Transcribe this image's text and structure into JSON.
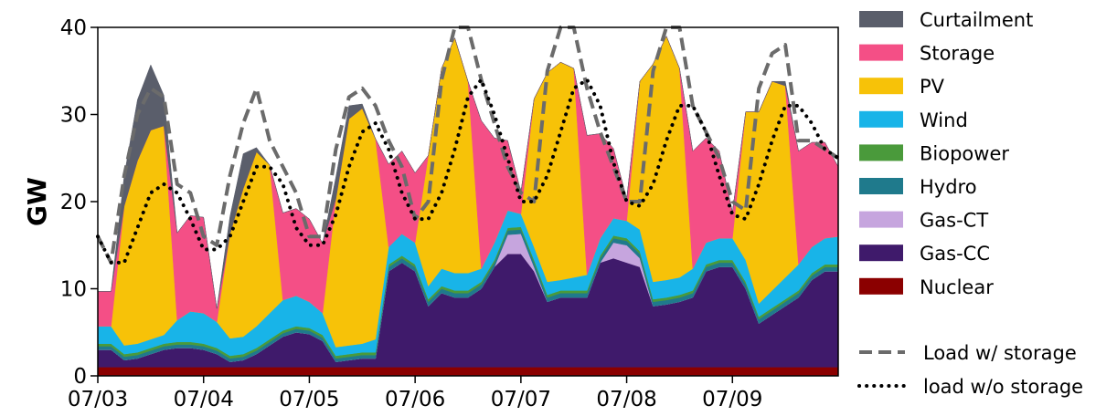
{
  "chart_data": {
    "type": "area",
    "ylabel": "GW",
    "ylim": [
      0,
      40
    ],
    "yticks": [
      0,
      10,
      20,
      30,
      40
    ],
    "xlim": [
      0,
      7
    ],
    "xticks": [
      0,
      1,
      2,
      3,
      4,
      5,
      6
    ],
    "xtick_labels": [
      "07/03",
      "07/04",
      "07/05",
      "07/06",
      "07/07",
      "07/08",
      "07/09"
    ],
    "grid": false,
    "legend_position": "right",
    "legend_order": [
      "Curtailment",
      "Storage",
      "PV",
      "Wind",
      "Biopower",
      "Hydro",
      "Gas-CT",
      "Gas-CC",
      "Nuclear"
    ],
    "x": [
      0,
      0.125,
      0.25,
      0.375,
      0.5,
      0.625,
      0.75,
      0.875,
      1,
      1.125,
      1.25,
      1.375,
      1.5,
      1.625,
      1.75,
      1.875,
      2,
      2.125,
      2.25,
      2.375,
      2.5,
      2.625,
      2.75,
      2.875,
      3,
      3.125,
      3.25,
      3.375,
      3.5,
      3.625,
      3.75,
      3.875,
      4,
      4.125,
      4.25,
      4.375,
      4.5,
      4.625,
      4.75,
      4.875,
      5,
      5.125,
      5.25,
      5.375,
      5.5,
      5.625,
      5.75,
      5.875,
      6,
      6.125,
      6.25,
      6.375,
      6.5,
      6.625,
      6.75,
      6.875,
      7
    ],
    "series": [
      {
        "name": "Nuclear",
        "color": "#8b0000",
        "values": [
          1,
          1,
          1,
          1,
          1,
          1,
          1,
          1,
          1,
          1,
          1,
          1,
          1,
          1,
          1,
          1,
          1,
          1,
          1,
          1,
          1,
          1,
          1,
          1,
          1,
          1,
          1,
          1,
          1,
          1,
          1,
          1,
          1,
          1,
          1,
          1,
          1,
          1,
          1,
          1,
          1,
          1,
          1,
          1,
          1,
          1,
          1,
          1,
          1,
          1,
          1,
          1,
          1,
          1,
          1,
          1,
          1
        ]
      },
      {
        "name": "Gas-CC",
        "color": "#3f1a6b",
        "values": [
          2,
          2,
          0.8,
          1,
          1.5,
          2,
          2.2,
          2.2,
          2,
          1.5,
          0.6,
          0.8,
          1.5,
          2.5,
          3.5,
          4,
          3.8,
          3,
          0.6,
          0.8,
          1,
          1,
          11,
          12,
          11,
          7,
          8.5,
          8,
          8,
          9,
          11.5,
          13,
          13,
          11,
          7.5,
          8,
          8,
          8,
          12,
          12.5,
          12,
          11.5,
          7,
          7.2,
          7.5,
          8,
          11,
          11.5,
          11.5,
          9,
          5,
          6,
          7,
          8,
          10,
          11,
          11
        ]
      },
      {
        "name": "Gas-CT",
        "color": "#c6a5de",
        "values": [
          0,
          0,
          0,
          0,
          0,
          0,
          0,
          0,
          0,
          0,
          0,
          0,
          0,
          0,
          0,
          0,
          0,
          0,
          0,
          0,
          0,
          0,
          0,
          0,
          0,
          0,
          0,
          0,
          0,
          0,
          0,
          2.2,
          2.3,
          0.5,
          0,
          0,
          0,
          0,
          0,
          1.8,
          2,
          1,
          0,
          0,
          0,
          0,
          0,
          0,
          0,
          0,
          0,
          0,
          0,
          0,
          0,
          0,
          0
        ]
      },
      {
        "name": "Hydro",
        "color": "#1f7a8c",
        "values": [
          0.4,
          0.4,
          0.4,
          0.4,
          0.4,
          0.4,
          0.4,
          0.4,
          0.4,
          0.4,
          0.4,
          0.4,
          0.4,
          0.4,
          0.4,
          0.4,
          0.4,
          0.4,
          0.4,
          0.4,
          0.4,
          0.4,
          0.5,
          0.5,
          0.5,
          0.5,
          0.5,
          0.5,
          0.5,
          0.5,
          0.5,
          0.5,
          0.5,
          0.5,
          0.5,
          0.5,
          0.5,
          0.5,
          0.5,
          0.5,
          0.5,
          0.5,
          0.5,
          0.5,
          0.5,
          0.5,
          0.5,
          0.5,
          0.5,
          0.5,
          0.5,
          0.5,
          0.5,
          0.5,
          0.5,
          0.5,
          0.5
        ]
      },
      {
        "name": "Biopower",
        "color": "#4a9a3b",
        "values": [
          0.3,
          0.3,
          0.3,
          0.3,
          0.3,
          0.3,
          0.3,
          0.3,
          0.3,
          0.3,
          0.3,
          0.3,
          0.3,
          0.3,
          0.3,
          0.3,
          0.3,
          0.3,
          0.3,
          0.3,
          0.3,
          0.3,
          0.3,
          0.3,
          0.3,
          0.3,
          0.3,
          0.3,
          0.3,
          0.3,
          0.3,
          0.3,
          0.3,
          0.3,
          0.3,
          0.3,
          0.3,
          0.3,
          0.3,
          0.3,
          0.3,
          0.3,
          0.3,
          0.3,
          0.3,
          0.3,
          0.3,
          0.3,
          0.3,
          0.3,
          0.3,
          0.3,
          0.3,
          0.3,
          0.3,
          0.3,
          0.3
        ]
      },
      {
        "name": "Wind",
        "color": "#18b4e8",
        "values": [
          2,
          2,
          1,
          1,
          1,
          1,
          2.5,
          3.5,
          3.5,
          3,
          2,
          2,
          2.5,
          3,
          3.5,
          3.5,
          3,
          2.5,
          1,
          1,
          1,
          1.5,
          2,
          2.5,
          2.5,
          1.5,
          2,
          2,
          2,
          1.5,
          2,
          2,
          1.5,
          1.5,
          1.5,
          1.2,
          1.5,
          1.8,
          2,
          2,
          2,
          2.5,
          2,
          2,
          2,
          2.5,
          2.5,
          2.5,
          2.5,
          2.5,
          1.5,
          2,
          2.5,
          3,
          3,
          3,
          3.2
        ]
      },
      {
        "name": "PV",
        "color": "#f7c208",
        "values": [
          0,
          0,
          16,
          21,
          24,
          24,
          0,
          0,
          0,
          0,
          12,
          17,
          20,
          17,
          0,
          0,
          0,
          0,
          17,
          26,
          27,
          23,
          0,
          0,
          0,
          15,
          23,
          27,
          22,
          0,
          0,
          0,
          0,
          17,
          24,
          25,
          24,
          0,
          0,
          0,
          0,
          17,
          25,
          28,
          24,
          0,
          0,
          0,
          0,
          17,
          22,
          24,
          22,
          0,
          0,
          0,
          0
        ]
      },
      {
        "name": "Storage",
        "color": "#f44f86",
        "values": [
          4,
          4,
          0,
          0,
          0,
          0,
          10,
          11,
          11,
          1.5,
          0,
          0,
          0,
          0,
          10,
          10,
          9.5,
          8,
          0,
          0,
          0,
          0,
          9.5,
          9.5,
          8,
          0,
          0,
          0,
          0,
          17,
          12,
          8,
          2.5,
          0,
          0,
          0,
          0,
          16,
          12,
          8,
          2.5,
          0,
          0,
          0,
          0,
          13.5,
          12,
          10,
          3,
          0,
          0,
          0,
          0,
          13,
          12,
          11,
          8
        ]
      },
      {
        "name": "Curtailment",
        "color": "#5a5e6b",
        "values": [
          0,
          0,
          3.5,
          7,
          7.5,
          3.5,
          0,
          0,
          0,
          0,
          2,
          4,
          0.5,
          0,
          0,
          0,
          0,
          0,
          2.5,
          1.5,
          0.5,
          0,
          0,
          0,
          0,
          0,
          0,
          0,
          0,
          0,
          0,
          0,
          0,
          0,
          0,
          0,
          0,
          0,
          0,
          0,
          0,
          0,
          0,
          0,
          0,
          0,
          0,
          0,
          0,
          0,
          0,
          0,
          0.5,
          0,
          0,
          0,
          0
        ]
      }
    ],
    "lines": [
      {
        "name": "Load w/ storage",
        "style": "dashed",
        "color": "#6b6b6b",
        "values": [
          16,
          13,
          23,
          30,
          33,
          32,
          22,
          21,
          16,
          15,
          23,
          29,
          33,
          27,
          24,
          21,
          16,
          16,
          26,
          32,
          33,
          31,
          27,
          24,
          18,
          20,
          34,
          40,
          40,
          34,
          29,
          24,
          21,
          20,
          35,
          40,
          40,
          33,
          28,
          24,
          20,
          20,
          35,
          40,
          40,
          31,
          28,
          25,
          20,
          19,
          33,
          37,
          38,
          27,
          27,
          26,
          25
        ]
      },
      {
        "name": "load w/o storage",
        "style": "dotted",
        "color": "#000000",
        "values": [
          16,
          13,
          13,
          17,
          21,
          22,
          21,
          18,
          14.5,
          14.5,
          16,
          20,
          24,
          24,
          22,
          17,
          15,
          15,
          18.5,
          24,
          28,
          29,
          26,
          21,
          18,
          18,
          21,
          26,
          32,
          34,
          30,
          25,
          20,
          20,
          23,
          28,
          33,
          34,
          31,
          24.5,
          20,
          19.5,
          22,
          27,
          31,
          31,
          28,
          23,
          18.5,
          18,
          22,
          27,
          31,
          31,
          29,
          26,
          25
        ]
      }
    ]
  }
}
